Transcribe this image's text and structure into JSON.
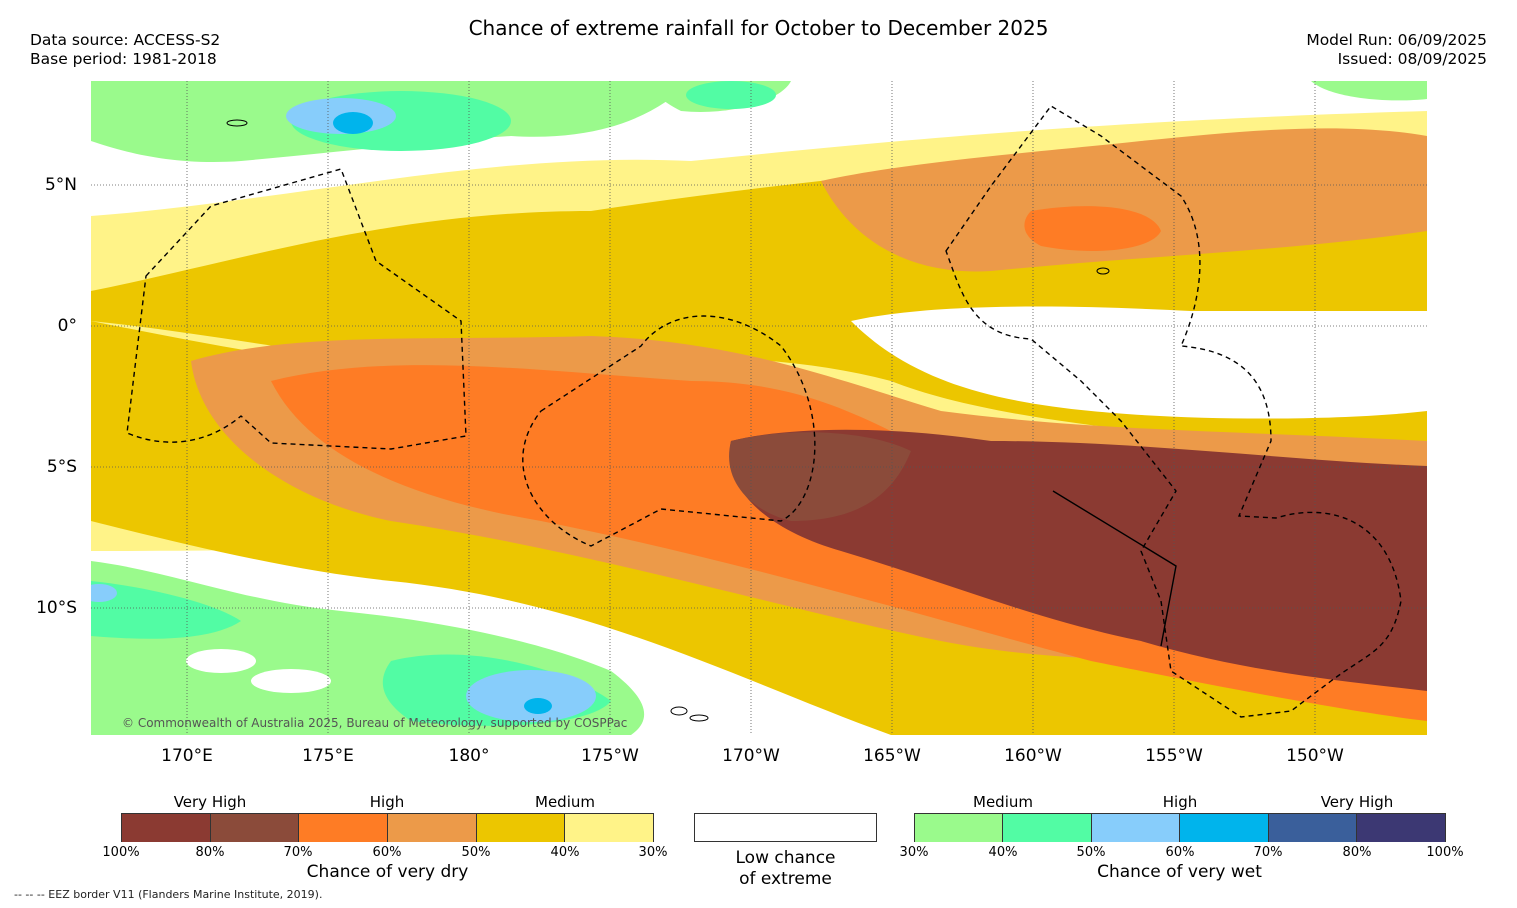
{
  "header": {
    "title": "Chance of extreme rainfall for October to December 2025",
    "data_source": "Data source: ACCESS-S2",
    "base_period": "Base period: 1981-2018",
    "model_run": "Model Run: 06/09/2025",
    "issued": "Issued: 08/09/2025"
  },
  "map": {
    "lat_labels": [
      "5°N",
      "0°",
      "5°S",
      "10°S"
    ],
    "lon_labels": [
      "170°E",
      "175°E",
      "180°",
      "175°W",
      "170°W",
      "165°W",
      "160°W",
      "155°W",
      "150°W"
    ],
    "copyright": "© Commonwealth of Australia 2025, Bureau of Meteorology, supported by COSPPac",
    "colors": {
      "dry_very_high_100": "#8b3a32",
      "dry_very_high_80": "#8b4b3a",
      "dry_high_70": "#fe7c25",
      "dry_high_60": "#ec9a49",
      "dry_medium_50": "#ecc600",
      "dry_medium_40": "#fff388",
      "wet_medium_30": "#9afa8c",
      "wet_medium_40": "#52fca4",
      "wet_high_50": "#87cdfb",
      "wet_high_60": "#00b4ec",
      "wet_very_high_70": "#3a5f9b",
      "wet_very_high_80": "#3c3873"
    }
  },
  "legend": {
    "dry": {
      "categories": [
        "Very High",
        "High",
        "Medium"
      ],
      "ticks": [
        "100%",
        "80%",
        "70%",
        "60%",
        "50%",
        "40%",
        "30%"
      ],
      "title": "Chance of very dry"
    },
    "low": {
      "title_line1": "Low chance",
      "title_line2": "of extreme"
    },
    "wet": {
      "categories": [
        "Medium",
        "High",
        "Very High"
      ],
      "ticks": [
        "30%",
        "40%",
        "50%",
        "60%",
        "70%",
        "80%",
        "100%"
      ],
      "title": "Chance of very wet"
    }
  },
  "footnote": "--  --  -- EEZ border V11 (Flanders Marine Institute, 2019)."
}
